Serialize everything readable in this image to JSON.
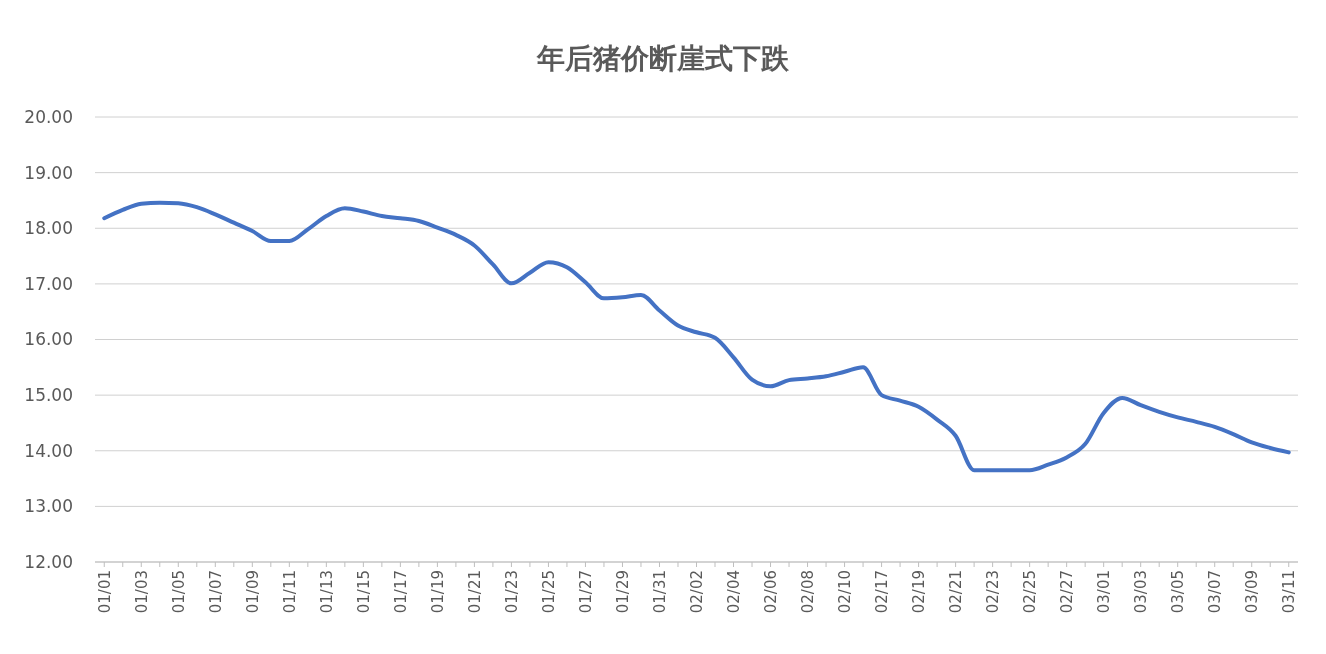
{
  "chart_data": {
    "type": "line",
    "title": "年后猪价断崖式下跌",
    "categories": [
      "01/01",
      null,
      "01/03",
      null,
      "01/05",
      null,
      "01/07",
      null,
      "01/09",
      null,
      "01/11",
      null,
      "01/13",
      null,
      "01/15",
      null,
      "01/17",
      null,
      "01/19",
      null,
      "01/21",
      null,
      "01/23",
      null,
      "01/25",
      null,
      "01/27",
      null,
      "01/29",
      null,
      "01/31",
      null,
      "02/02",
      null,
      "02/04",
      null,
      "02/06",
      null,
      "02/08",
      null,
      "02/10",
      null,
      "02/17",
      null,
      "02/19",
      null,
      "02/21",
      null,
      "02/23",
      null,
      "02/25",
      null,
      "02/27",
      null,
      "03/01",
      null,
      "03/03",
      null,
      "03/05",
      null,
      "03/07",
      null,
      "03/09",
      null,
      "03/11"
    ],
    "series": [
      {
        "color": "#4472c4",
        "values": [
          18.18,
          18.33,
          18.44,
          18.46,
          18.45,
          18.38,
          18.25,
          18.1,
          17.95,
          17.77,
          17.77,
          17.98,
          18.22,
          18.36,
          18.3,
          18.22,
          18.18,
          18.13,
          18.01,
          17.88,
          17.69,
          17.35,
          17.01,
          17.2,
          17.39,
          17.3,
          17.03,
          16.74,
          16.76,
          16.8,
          16.52,
          16.25,
          16.13,
          16.03,
          15.68,
          15.28,
          15.16,
          15.27,
          15.3,
          15.34,
          15.42,
          15.5,
          15.0,
          14.9,
          14.79,
          14.56,
          14.27,
          13.65,
          13.65,
          13.65,
          13.65,
          13.75,
          13.88,
          14.12,
          14.68,
          14.95,
          14.82,
          14.7,
          14.6,
          14.52,
          14.43,
          14.3,
          14.15,
          14.05,
          13.97
        ]
      }
    ],
    "ylim": [
      12,
      20
    ],
    "yticks": [
      {
        "value": 12,
        "label": "12.00"
      },
      {
        "value": 13,
        "label": "13.00"
      },
      {
        "value": 14,
        "label": "14.00"
      },
      {
        "value": 15,
        "label": "15.00"
      },
      {
        "value": 16,
        "label": "16.00"
      },
      {
        "value": 17,
        "label": "17.00"
      },
      {
        "value": 18,
        "label": "18.00"
      },
      {
        "value": 19,
        "label": "19.00"
      },
      {
        "value": 20,
        "label": "20.00"
      }
    ],
    "grid": "y",
    "marker": "none",
    "line_style": "solid"
  }
}
